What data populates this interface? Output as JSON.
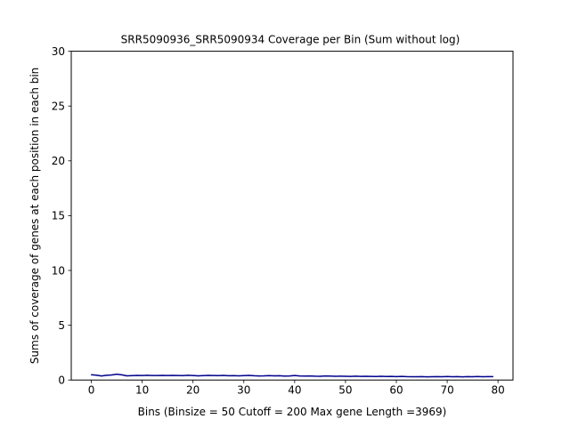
{
  "chart_data": {
    "type": "line",
    "title": "SRR5090936_SRR5090934 Coverage per Bin (Sum without log)",
    "xlabel": "Bins  (Binsize = 50 Cutoff = 200 Max gene Length =3969)",
    "ylabel": "Sums of coverage of genes at each position in each bin",
    "xlim": [
      -3.95,
      82.95
    ],
    "ylim": [
      0,
      30
    ],
    "x_ticks": [
      0,
      10,
      20,
      30,
      40,
      50,
      60,
      70,
      80
    ],
    "y_ticks": [
      0,
      5,
      10,
      15,
      20,
      25,
      30
    ],
    "grid": false,
    "series": [
      {
        "color": "#00008b",
        "x": [
          0,
          1,
          2,
          3,
          4,
          5,
          6,
          7,
          8,
          9,
          10,
          11,
          12,
          13,
          14,
          15,
          16,
          17,
          18,
          19,
          20,
          21,
          22,
          23,
          24,
          25,
          26,
          27,
          28,
          29,
          30,
          31,
          32,
          33,
          34,
          35,
          36,
          37,
          38,
          39,
          40,
          41,
          42,
          43,
          44,
          45,
          46,
          47,
          48,
          49,
          50,
          51,
          52,
          53,
          54,
          55,
          56,
          57,
          58,
          59,
          60,
          61,
          62,
          63,
          64,
          65,
          66,
          67,
          68,
          69,
          70,
          71,
          72,
          73,
          74,
          75,
          76,
          77,
          78,
          79
        ],
        "y": [
          0.48,
          0.44,
          0.37,
          0.43,
          0.46,
          0.53,
          0.47,
          0.38,
          0.4,
          0.42,
          0.41,
          0.43,
          0.41,
          0.41,
          0.42,
          0.41,
          0.42,
          0.41,
          0.4,
          0.43,
          0.41,
          0.38,
          0.4,
          0.42,
          0.41,
          0.4,
          0.42,
          0.39,
          0.4,
          0.38,
          0.4,
          0.42,
          0.39,
          0.37,
          0.38,
          0.4,
          0.38,
          0.39,
          0.36,
          0.37,
          0.41,
          0.37,
          0.36,
          0.37,
          0.35,
          0.34,
          0.37,
          0.36,
          0.34,
          0.35,
          0.34,
          0.33,
          0.35,
          0.33,
          0.34,
          0.33,
          0.32,
          0.34,
          0.32,
          0.33,
          0.31,
          0.33,
          0.31,
          0.3,
          0.3,
          0.31,
          0.29,
          0.3,
          0.31,
          0.3,
          0.32,
          0.3,
          0.31,
          0.29,
          0.31,
          0.3,
          0.32,
          0.3,
          0.31,
          0.31
        ]
      }
    ]
  }
}
